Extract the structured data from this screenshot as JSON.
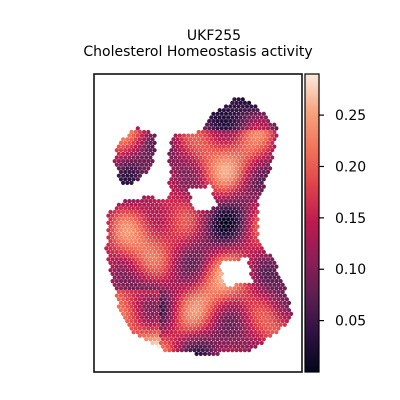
{
  "chart_data": {
    "type": "heatmap",
    "title": "UKF255",
    "subtitle": "Cholesterol Homeostasis activity",
    "xlabel": "",
    "ylabel": "",
    "colormap": "rocket",
    "colorbar": {
      "range": [
        0.0,
        0.29
      ],
      "ticks": [
        0.05,
        0.1,
        0.15,
        0.2,
        0.25
      ],
      "tick_labels": [
        "0.05",
        "0.10",
        "0.15",
        "0.20",
        "0.25"
      ]
    },
    "axes_visible": false,
    "grid": false
  },
  "colors": {
    "rocket_stops": [
      "#03051a",
      "#2c1142",
      "#5b1e51",
      "#8c1f56",
      "#bc1a4f",
      "#e0424a",
      "#f1735a",
      "#f6a47f",
      "#faebdd"
    ]
  }
}
